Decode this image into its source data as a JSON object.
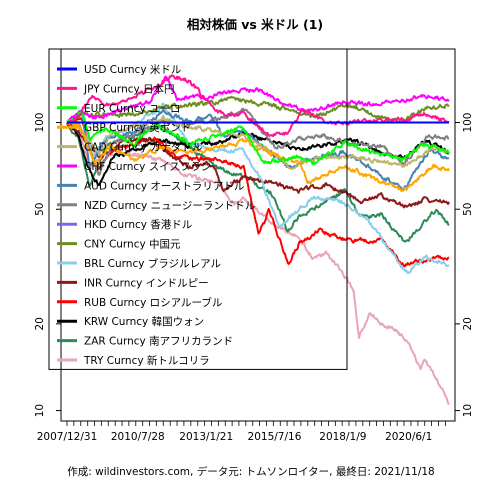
{
  "chart_data": {
    "type": "line",
    "title": "相対株価 vs 米ドル (1)",
    "footer": "作成: wildinvestors.com, データ元: トムソンロイター, 最終日: 2021/11/18",
    "y_scale": "log",
    "ylim": [
      9.2,
      180
    ],
    "y_ticks": [
      10,
      20,
      50,
      100
    ],
    "x_start": "2007/12/31",
    "x_end": "2021/11/18",
    "x_tick_labels": [
      "2007/12/31",
      "2010/7/28",
      "2013/1/21",
      "2015/7/16",
      "2018/1/9",
      "2020/6/1"
    ],
    "legend_position": "top-left",
    "series": [
      {
        "name": "USD Curncy 米ドル",
        "color": "#0000ff",
        "x": [
          "2007/12/31",
          "2021/11/18"
        ],
        "values": [
          100,
          100
        ]
      },
      {
        "name": "JPY Curncy 日本円",
        "color": "#ff1493",
        "x": [
          "2007/12/31",
          "2008/6/1",
          "2008/12/1",
          "2009/6/1",
          "2010/1/1",
          "2011/1/1",
          "2011/10/31",
          "2012/6/1",
          "2013/1/21",
          "2013/6/1",
          "2014/6/1",
          "2015/6/1",
          "2016/1/1",
          "2016/8/1",
          "2017/6/1",
          "2018/6/1",
          "2019/6/1",
          "2020/6/1",
          "2021/1/1",
          "2021/11/18"
        ],
        "values": [
          100,
          105,
          125,
          115,
          118,
          130,
          145,
          140,
          120,
          108,
          107,
          90,
          92,
          110,
          100,
          100,
          102,
          104,
          107,
          100
        ]
      },
      {
        "name": "EUR Curncy ユーロ",
        "color": "#00ff00",
        "x": [
          "2007/12/31",
          "2008/7/15",
          "2008/11/1",
          "2009/6/1",
          "2010/6/1",
          "2011/4/1",
          "2012/7/1",
          "2014/5/1",
          "2015/3/1",
          "2016/6/1",
          "2017/1/1",
          "2018/2/1",
          "2019/6/1",
          "2020/3/1",
          "2021/1/1",
          "2021/11/18"
        ],
        "values": [
          100,
          108,
          88,
          96,
          84,
          99,
          84,
          96,
          73,
          76,
          72,
          85,
          77,
          75,
          84,
          78
        ]
      },
      {
        "name": "GBP Curncy 英ポンド",
        "color": "#ffa500",
        "x": [
          "2007/12/31",
          "2008/6/1",
          "2009/1/15",
          "2009/8/1",
          "2010/6/1",
          "2011/6/1",
          "2012/6/1",
          "2014/7/1",
          "2015/6/1",
          "2016/6/20",
          "2016/10/1",
          "2018/2/1",
          "2019/8/1",
          "2020/3/20",
          "2021/5/1",
          "2021/11/18"
        ],
        "values": [
          100,
          98,
          72,
          83,
          74,
          82,
          78,
          86,
          78,
          72,
          62,
          71,
          61,
          58,
          71,
          68
        ]
      },
      {
        "name": "CAD Curncy カナダドル",
        "color": "#bdb76b",
        "x": [
          "2007/12/31",
          "2008/6/1",
          "2009/3/1",
          "2009/9/1",
          "2011/7/1",
          "2012/6/1",
          "2013/6/1",
          "2014/6/1",
          "2015/6/1",
          "2016/1/20",
          "2017/1/1",
          "2018/6/1",
          "2020/3/20",
          "2021/6/1",
          "2021/11/18"
        ],
        "values": [
          100,
          98,
          78,
          92,
          104,
          96,
          94,
          90,
          80,
          70,
          75,
          76,
          71,
          82,
          79
        ]
      },
      {
        "name": "CHF Curncy スイスフラン",
        "color": "#ff00ff",
        "x": [
          "2007/12/31",
          "2008/6/1",
          "2009/1/1",
          "2010/1/1",
          "2011/1/1",
          "2011/8/10",
          "2012/1/1",
          "2013/1/1",
          "2014/1/1",
          "2015/1/15",
          "2016/1/1",
          "2017/1/1",
          "2018/1/1",
          "2019/1/1",
          "2020/1/1",
          "2021/1/1",
          "2021/11/18"
        ],
        "values": [
          100,
          108,
          104,
          110,
          118,
          145,
          122,
          122,
          128,
          130,
          114,
          110,
          118,
          116,
          118,
          124,
          120
        ]
      },
      {
        "name": "AUD Curncy オーストラリアドル",
        "color": "#4682b4",
        "x": [
          "2007/12/31",
          "2008/7/15",
          "2008/10/27",
          "2009/6/1",
          "2010/6/1",
          "2011/7/1",
          "2012/6/1",
          "2013/4/1",
          "2013/9/1",
          "2014/6/1",
          "2015/6/1",
          "2016/1/20",
          "2017/1/1",
          "2018/1/1",
          "2019/1/1",
          "2020/3/20",
          "2021/2/25",
          "2021/11/18"
        ],
        "values": [
          100,
          110,
          70,
          88,
          92,
          110,
          100,
          105,
          90,
          94,
          78,
          70,
          75,
          79,
          70,
          58,
          80,
          75
        ]
      },
      {
        "name": "NZD Curncy ニュージーランドドル",
        "color": "#808080",
        "x": [
          "2007/12/31",
          "2008/6/1",
          "2009/3/1",
          "2009/9/1",
          "2011/6/1",
          "2012/6/1",
          "2013/6/1",
          "2014/7/1",
          "2015/8/1",
          "2016/6/1",
          "2017/6/1",
          "2018/6/1",
          "2019/6/1",
          "2020/3/20",
          "2021/2/25",
          "2021/11/18"
        ],
        "values": [
          100,
          100,
          66,
          85,
          100,
          98,
          102,
          110,
          82,
          88,
          90,
          84,
          83,
          72,
          90,
          88
        ]
      },
      {
        "name": "HKD Curncy 香港ドル",
        "color": "#7b68ee",
        "x": [
          "2007/12/31",
          "2021/11/18"
        ],
        "values": [
          100,
          100
        ]
      },
      {
        "name": "CNY Curncy 中国元",
        "color": "#6b8e23",
        "x": [
          "2007/12/31",
          "2008/7/1",
          "2010/6/1",
          "2011/6/1",
          "2012/6/1",
          "2013/6/1",
          "2014/1/1",
          "2015/8/11",
          "2016/12/1",
          "2017/6/1",
          "2018/3/1",
          "2019/9/1",
          "2020/5/1",
          "2021/1/1",
          "2021/11/18"
        ],
        "values": [
          100,
          106,
          107,
          112,
          115,
          118,
          121,
          114,
          105,
          108,
          116,
          102,
          103,
          112,
          115
        ]
      },
      {
        "name": "BRL Curncy ブラジルレアル",
        "color": "#87ceeb",
        "x": [
          "2007/12/31",
          "2008/8/1",
          "2008/12/1",
          "2009/6/1",
          "2010/6/1",
          "2011/7/1",
          "2012/6/1",
          "2013/6/1",
          "2014/6/1",
          "2015/1/1",
          "2015/9/23",
          "2016/6/1",
          "2017/1/1",
          "2018/1/1",
          "2019/1/1",
          "2020/5/13",
          "2021/1/1",
          "2021/11/18"
        ],
        "values": [
          100,
          110,
          75,
          88,
          97,
          115,
          85,
          80,
          80,
          65,
          43,
          50,
          55,
          53,
          45,
          30,
          34,
          32
        ]
      },
      {
        "name": "INR Curncy インドルピー",
        "color": "#8b1a1a",
        "x": [
          "2007/12/31",
          "2008/6/1",
          "2009/3/1",
          "2010/1/1",
          "2011/1/1",
          "2011/12/1",
          "2012/6/1",
          "2013/5/1",
          "2013/8/28",
          "2014/6/1",
          "2015/6/1",
          "2016/6/1",
          "2017/6/1",
          "2018/10/11",
          "2019/6/1",
          "2020/4/1",
          "2021/1/1",
          "2021/11/18"
        ],
        "values": [
          100,
          92,
          76,
          85,
          88,
          75,
          70,
          72,
          58,
          65,
          62,
          58,
          61,
          53,
          56,
          51,
          54,
          53
        ]
      },
      {
        "name": "RUB Curncy ロシアルーブル",
        "color": "#ff0000",
        "x": [
          "2007/12/31",
          "2008/7/15",
          "2009/2/1",
          "2009/9/1",
          "2011/4/1",
          "2011/10/1",
          "2012/6/1",
          "2013/6/1",
          "2014/6/1",
          "2014/12/16",
          "2015/3/1",
          "2015/5/1",
          "2016/1/20",
          "2016/6/1",
          "2017/3/1",
          "2018/4/10",
          "2019/6/1",
          "2020/3/20",
          "2021/6/1",
          "2021/11/18"
        ],
        "values": [
          100,
          104,
          68,
          80,
          88,
          78,
          75,
          75,
          70,
          42,
          45,
          50,
          32,
          38,
          42,
          39,
          39,
          32,
          34,
          34
        ]
      },
      {
        "name": "KRW Curncy 韓国ウォン",
        "color": "#000000",
        "x": [
          "2007/12/31",
          "2008/6/1",
          "2008/10/1",
          "2009/3/2",
          "2009/9/1",
          "2010/6/1",
          "2011/6/1",
          "2012/6/1",
          "2013/6/1",
          "2014/6/1",
          "2015/6/1",
          "2016/6/1",
          "2017/6/1",
          "2018/6/1",
          "2019/6/1",
          "2020/3/19",
          "2021/1/1",
          "2021/11/18"
        ],
        "values": [
          100,
          90,
          70,
          60,
          76,
          80,
          87,
          83,
          85,
          92,
          86,
          81,
          84,
          87,
          79,
          75,
          86,
          79
        ]
      },
      {
        "name": "ZAR Curncy 南アフリカランド",
        "color": "#2e8b57",
        "x": [
          "2007/12/31",
          "2008/6/1",
          "2008/10/22",
          "2009/6/1",
          "2010/6/1",
          "2011/6/1",
          "2012/6/1",
          "2013/6/1",
          "2014/6/1",
          "2015/6/1",
          "2016/1/11",
          "2016/6/1",
          "2017/6/1",
          "2018/2/1",
          "2018/9/1",
          "2019/6/1",
          "2020/4/6",
          "2021/6/1",
          "2021/11/18"
        ],
        "values": [
          100,
          88,
          60,
          83,
          90,
          98,
          83,
          70,
          65,
          57,
          42,
          47,
          53,
          58,
          47,
          48,
          38,
          50,
          44
        ]
      },
      {
        "name": "TRY Curncy 新トルコリラ",
        "color": "#e8a5b5",
        "x": [
          "2007/12/31",
          "2008/6/1",
          "2008/10/24",
          "2009/6/1",
          "2010/6/1",
          "2011/6/1",
          "2012/6/1",
          "2013/6/1",
          "2014/1/27",
          "2014/6/1",
          "2015/6/1",
          "2016/6/1",
          "2016/12/1",
          "2017/6/1",
          "2018/1/9",
          "2018/6/1",
          "2018/8/13",
          "2019/1/1",
          "2019/6/1",
          "2020/1/1",
          "2020/6/1",
          "2020/11/6",
          "2021/1/1",
          "2021/6/1",
          "2021/11/18"
        ],
        "values": [
          100,
          95,
          70,
          78,
          78,
          74,
          65,
          62,
          52,
          55,
          45,
          40,
          34,
          35,
          30,
          26,
          18,
          22,
          20,
          19,
          17,
          14,
          15,
          13,
          10.5
        ]
      }
    ]
  }
}
